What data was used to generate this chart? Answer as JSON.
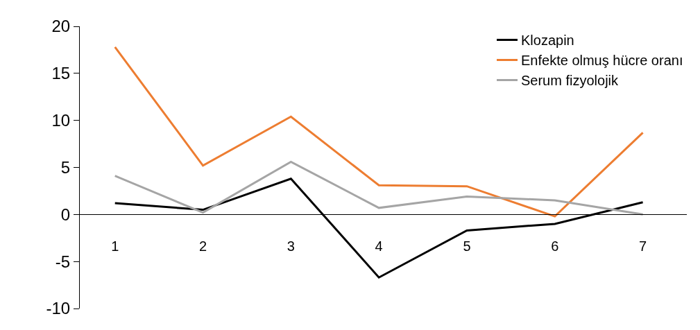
{
  "chart_data": {
    "type": "line",
    "categories": [
      "1",
      "2",
      "3",
      "4",
      "5",
      "6",
      "7"
    ],
    "series": [
      {
        "name": "Klozapin",
        "color": "#000000",
        "values": [
          1.2,
          0.5,
          3.8,
          -6.7,
          -1.7,
          -1.0,
          1.3
        ]
      },
      {
        "name": "Enfekte olmuş hücre oranı",
        "color": "#ed7d31",
        "values": [
          17.8,
          5.2,
          10.4,
          3.1,
          3.0,
          -0.2,
          8.7
        ]
      },
      {
        "name": "Serum fizyolojik",
        "color": "#a5a5a5",
        "values": [
          4.1,
          0.2,
          5.6,
          0.7,
          1.9,
          1.5,
          0.0
        ]
      }
    ],
    "ylim": [
      -10,
      20
    ],
    "yticks": [
      -10,
      -5,
      0,
      5,
      10,
      15,
      20
    ],
    "legend": "top right",
    "marker": "none",
    "line_style": "solid"
  }
}
